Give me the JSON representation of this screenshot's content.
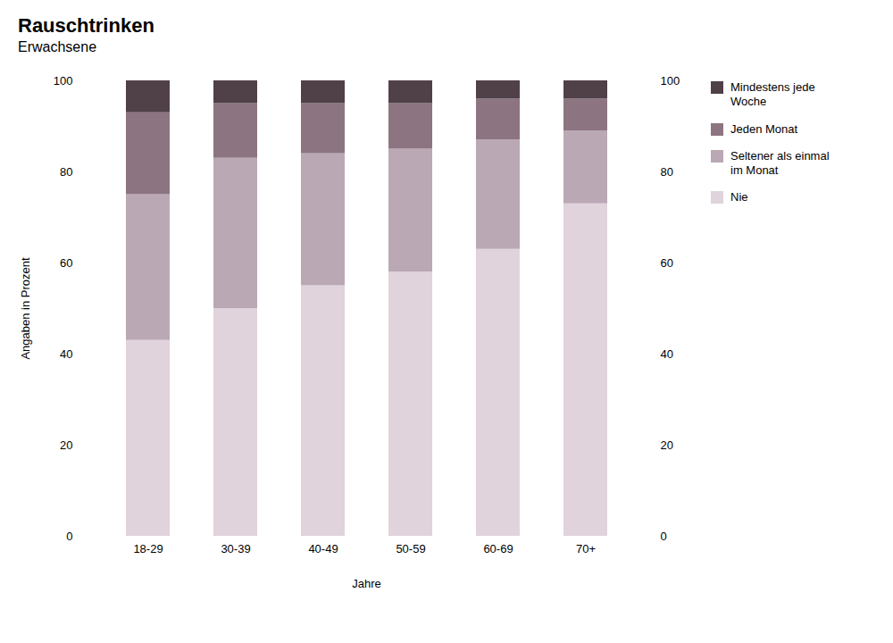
{
  "chart_data": {
    "type": "bar",
    "stacked": true,
    "title": "Rauschtrinken",
    "subtitle": "Erwachsene",
    "xlabel": "Jahre",
    "ylabel": "Angaben in Prozent",
    "categories": [
      "18-29",
      "30-39",
      "40-49",
      "50-59",
      "60-69",
      "70+"
    ],
    "series": [
      {
        "name": "Nie",
        "color": "#e0d3dc",
        "values": [
          43,
          50,
          55,
          58,
          63,
          73
        ]
      },
      {
        "name": "Seltener als einmal\nim Monat",
        "color": "#baa8b5",
        "values": [
          32,
          33,
          29,
          27,
          24,
          16
        ]
      },
      {
        "name": "Jeden Monat",
        "color": "#8c7580",
        "values": [
          18,
          12,
          11,
          10,
          9,
          7
        ]
      },
      {
        "name": "Mindestens jede\nWoche",
        "color": "#504048",
        "values": [
          7,
          5,
          5,
          5,
          4,
          4
        ]
      }
    ],
    "ylim": [
      0,
      100
    ],
    "yticks": [
      0,
      20,
      40,
      60,
      80,
      100
    ],
    "grid": false,
    "legend": "right"
  }
}
